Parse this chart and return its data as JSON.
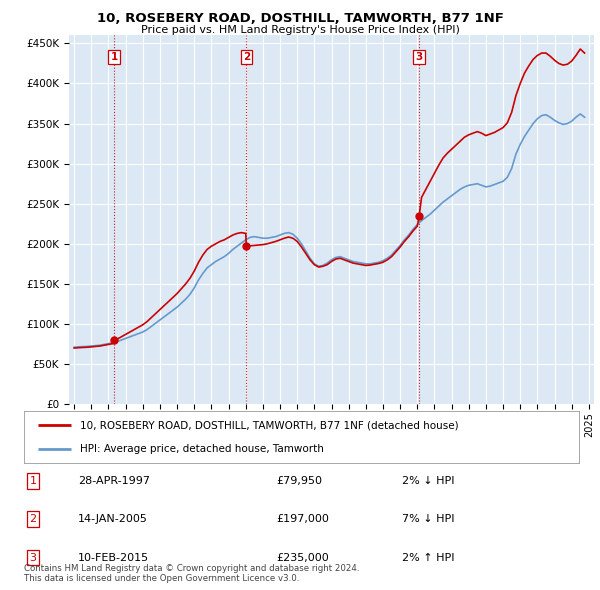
{
  "title": "10, ROSEBERY ROAD, DOSTHILL, TAMWORTH, B77 1NF",
  "subtitle": "Price paid vs. HM Land Registry's House Price Index (HPI)",
  "legend_line1": "10, ROSEBERY ROAD, DOSTHILL, TAMWORTH, B77 1NF (detached house)",
  "legend_line2": "HPI: Average price, detached house, Tamworth",
  "sale_color": "#cc0000",
  "hpi_color": "#6699cc",
  "background_chart": "#dce9f5",
  "background_fig": "#ffffff",
  "grid_color": "#ffffff",
  "vline_color": "#cc0000",
  "transactions": [
    {
      "label": "1",
      "date_num": 1997.32,
      "price": 79950,
      "info": "28-APR-1997",
      "amount": "£79,950",
      "pct": "2%",
      "dir": "↓"
    },
    {
      "label": "2",
      "date_num": 2005.04,
      "price": 197000,
      "info": "14-JAN-2005",
      "amount": "£197,000",
      "pct": "7%",
      "dir": "↓"
    },
    {
      "label": "3",
      "date_num": 2015.11,
      "price": 235000,
      "info": "10-FEB-2015",
      "amount": "£235,000",
      "pct": "2%",
      "dir": "↑"
    }
  ],
  "hpi_data": [
    [
      1995.0,
      71000
    ],
    [
      1995.25,
      71500
    ],
    [
      1995.5,
      71800
    ],
    [
      1995.75,
      72000
    ],
    [
      1996.0,
      72500
    ],
    [
      1996.25,
      73000
    ],
    [
      1996.5,
      73500
    ],
    [
      1996.75,
      74500
    ],
    [
      1997.0,
      75500
    ],
    [
      1997.25,
      76500
    ],
    [
      1997.5,
      78000
    ],
    [
      1997.75,
      80000
    ],
    [
      1998.0,
      82000
    ],
    [
      1998.25,
      84000
    ],
    [
      1998.5,
      86000
    ],
    [
      1998.75,
      88000
    ],
    [
      1999.0,
      90000
    ],
    [
      1999.25,
      93000
    ],
    [
      1999.5,
      97000
    ],
    [
      1999.75,
      101000
    ],
    [
      2000.0,
      105000
    ],
    [
      2000.25,
      109000
    ],
    [
      2000.5,
      113000
    ],
    [
      2000.75,
      117000
    ],
    [
      2001.0,
      121000
    ],
    [
      2001.25,
      126000
    ],
    [
      2001.5,
      131000
    ],
    [
      2001.75,
      137000
    ],
    [
      2002.0,
      145000
    ],
    [
      2002.25,
      155000
    ],
    [
      2002.5,
      163000
    ],
    [
      2002.75,
      170000
    ],
    [
      2003.0,
      174000
    ],
    [
      2003.25,
      178000
    ],
    [
      2003.5,
      181000
    ],
    [
      2003.75,
      184000
    ],
    [
      2004.0,
      188000
    ],
    [
      2004.25,
      193000
    ],
    [
      2004.5,
      197000
    ],
    [
      2004.75,
      201000
    ],
    [
      2005.0,
      205000
    ],
    [
      2005.25,
      208000
    ],
    [
      2005.5,
      209000
    ],
    [
      2005.75,
      208000
    ],
    [
      2006.0,
      207000
    ],
    [
      2006.25,
      207000
    ],
    [
      2006.5,
      208000
    ],
    [
      2006.75,
      209000
    ],
    [
      2007.0,
      211000
    ],
    [
      2007.25,
      213000
    ],
    [
      2007.5,
      214000
    ],
    [
      2007.75,
      212000
    ],
    [
      2008.0,
      207000
    ],
    [
      2008.25,
      200000
    ],
    [
      2008.5,
      191000
    ],
    [
      2008.75,
      182000
    ],
    [
      2009.0,
      175000
    ],
    [
      2009.25,
      172000
    ],
    [
      2009.5,
      173000
    ],
    [
      2009.75,
      176000
    ],
    [
      2010.0,
      180000
    ],
    [
      2010.25,
      183000
    ],
    [
      2010.5,
      184000
    ],
    [
      2010.75,
      182000
    ],
    [
      2011.0,
      180000
    ],
    [
      2011.25,
      178000
    ],
    [
      2011.5,
      177000
    ],
    [
      2011.75,
      176000
    ],
    [
      2012.0,
      175000
    ],
    [
      2012.25,
      175000
    ],
    [
      2012.5,
      176000
    ],
    [
      2012.75,
      177000
    ],
    [
      2013.0,
      179000
    ],
    [
      2013.25,
      182000
    ],
    [
      2013.5,
      186000
    ],
    [
      2013.75,
      192000
    ],
    [
      2014.0,
      198000
    ],
    [
      2014.25,
      205000
    ],
    [
      2014.5,
      211000
    ],
    [
      2014.75,
      218000
    ],
    [
      2015.0,
      224000
    ],
    [
      2015.25,
      229000
    ],
    [
      2015.5,
      233000
    ],
    [
      2015.75,
      237000
    ],
    [
      2016.0,
      242000
    ],
    [
      2016.25,
      247000
    ],
    [
      2016.5,
      252000
    ],
    [
      2016.75,
      256000
    ],
    [
      2017.0,
      260000
    ],
    [
      2017.25,
      264000
    ],
    [
      2017.5,
      268000
    ],
    [
      2017.75,
      271000
    ],
    [
      2018.0,
      273000
    ],
    [
      2018.25,
      274000
    ],
    [
      2018.5,
      275000
    ],
    [
      2018.75,
      273000
    ],
    [
      2019.0,
      271000
    ],
    [
      2019.25,
      272000
    ],
    [
      2019.5,
      274000
    ],
    [
      2019.75,
      276000
    ],
    [
      2020.0,
      278000
    ],
    [
      2020.25,
      283000
    ],
    [
      2020.5,
      294000
    ],
    [
      2020.75,
      312000
    ],
    [
      2021.0,
      324000
    ],
    [
      2021.25,
      334000
    ],
    [
      2021.5,
      342000
    ],
    [
      2021.75,
      350000
    ],
    [
      2022.0,
      356000
    ],
    [
      2022.25,
      360000
    ],
    [
      2022.5,
      361000
    ],
    [
      2022.75,
      358000
    ],
    [
      2023.0,
      354000
    ],
    [
      2023.25,
      351000
    ],
    [
      2023.5,
      349000
    ],
    [
      2023.75,
      350000
    ],
    [
      2024.0,
      353000
    ],
    [
      2024.25,
      358000
    ],
    [
      2024.5,
      362000
    ],
    [
      2024.75,
      358000
    ]
  ],
  "sale_hpi_data": [
    [
      1995.0,
      70000
    ],
    [
      1995.25,
      70400
    ],
    [
      1995.5,
      70700
    ],
    [
      1995.75,
      71000
    ],
    [
      1996.0,
      71400
    ],
    [
      1996.25,
      72000
    ],
    [
      1996.5,
      72500
    ],
    [
      1996.75,
      73500
    ],
    [
      1997.0,
      74500
    ],
    [
      1997.25,
      75500
    ],
    [
      1997.32,
      79950
    ],
    [
      1997.5,
      81000
    ],
    [
      1997.75,
      84000
    ],
    [
      1998.0,
      87000
    ],
    [
      1998.25,
      90000
    ],
    [
      1998.5,
      93000
    ],
    [
      1998.75,
      96000
    ],
    [
      1999.0,
      99000
    ],
    [
      1999.25,
      103000
    ],
    [
      1999.5,
      108000
    ],
    [
      1999.75,
      113000
    ],
    [
      2000.0,
      118000
    ],
    [
      2000.25,
      123000
    ],
    [
      2000.5,
      128000
    ],
    [
      2000.75,
      133000
    ],
    [
      2001.0,
      138000
    ],
    [
      2001.25,
      144000
    ],
    [
      2001.5,
      150000
    ],
    [
      2001.75,
      157000
    ],
    [
      2002.0,
      166000
    ],
    [
      2002.25,
      177000
    ],
    [
      2002.5,
      186000
    ],
    [
      2002.75,
      193000
    ],
    [
      2003.0,
      197000
    ],
    [
      2003.25,
      200000
    ],
    [
      2003.5,
      203000
    ],
    [
      2003.75,
      205000
    ],
    [
      2004.0,
      208000
    ],
    [
      2004.25,
      211000
    ],
    [
      2004.5,
      213000
    ],
    [
      2004.75,
      214000
    ],
    [
      2005.0,
      213000
    ],
    [
      2005.04,
      197000
    ],
    [
      2005.25,
      197500
    ],
    [
      2005.5,
      198000
    ],
    [
      2005.75,
      198500
    ],
    [
      2006.0,
      199000
    ],
    [
      2006.25,
      200000
    ],
    [
      2006.5,
      201500
    ],
    [
      2006.75,
      203000
    ],
    [
      2007.0,
      205000
    ],
    [
      2007.25,
      207000
    ],
    [
      2007.5,
      208500
    ],
    [
      2007.75,
      207000
    ],
    [
      2008.0,
      203000
    ],
    [
      2008.25,
      196000
    ],
    [
      2008.5,
      188000
    ],
    [
      2008.75,
      180000
    ],
    [
      2009.0,
      174000
    ],
    [
      2009.25,
      171000
    ],
    [
      2009.5,
      172000
    ],
    [
      2009.75,
      174000
    ],
    [
      2010.0,
      178000
    ],
    [
      2010.25,
      181000
    ],
    [
      2010.5,
      182000
    ],
    [
      2010.75,
      180000
    ],
    [
      2011.0,
      178000
    ],
    [
      2011.25,
      176000
    ],
    [
      2011.5,
      175000
    ],
    [
      2011.75,
      174000
    ],
    [
      2012.0,
      173000
    ],
    [
      2012.25,
      173500
    ],
    [
      2012.5,
      174500
    ],
    [
      2012.75,
      175500
    ],
    [
      2013.0,
      177000
    ],
    [
      2013.25,
      180000
    ],
    [
      2013.5,
      184000
    ],
    [
      2013.75,
      190000
    ],
    [
      2014.0,
      196000
    ],
    [
      2014.25,
      203000
    ],
    [
      2014.5,
      209000
    ],
    [
      2014.75,
      216000
    ],
    [
      2015.0,
      222000
    ],
    [
      2015.11,
      235000
    ],
    [
      2015.25,
      258000
    ],
    [
      2015.5,
      268000
    ],
    [
      2015.75,
      278000
    ],
    [
      2016.0,
      288000
    ],
    [
      2016.25,
      298000
    ],
    [
      2016.5,
      307000
    ],
    [
      2016.75,
      313000
    ],
    [
      2017.0,
      318000
    ],
    [
      2017.25,
      323000
    ],
    [
      2017.5,
      328000
    ],
    [
      2017.75,
      333000
    ],
    [
      2018.0,
      336000
    ],
    [
      2018.25,
      338000
    ],
    [
      2018.5,
      340000
    ],
    [
      2018.75,
      338000
    ],
    [
      2019.0,
      335000
    ],
    [
      2019.25,
      337000
    ],
    [
      2019.5,
      339000
    ],
    [
      2019.75,
      342000
    ],
    [
      2020.0,
      345000
    ],
    [
      2020.25,
      351000
    ],
    [
      2020.5,
      364000
    ],
    [
      2020.75,
      385000
    ],
    [
      2021.0,
      400000
    ],
    [
      2021.25,
      413000
    ],
    [
      2021.5,
      422000
    ],
    [
      2021.75,
      430000
    ],
    [
      2022.0,
      435000
    ],
    [
      2022.25,
      438000
    ],
    [
      2022.5,
      438000
    ],
    [
      2022.75,
      434000
    ],
    [
      2023.0,
      429000
    ],
    [
      2023.25,
      425000
    ],
    [
      2023.5,
      423000
    ],
    [
      2023.75,
      424000
    ],
    [
      2024.0,
      428000
    ],
    [
      2024.25,
      435000
    ],
    [
      2024.5,
      443000
    ],
    [
      2024.75,
      438000
    ]
  ],
  "xlim": [
    1994.7,
    2025.3
  ],
  "ylim": [
    0,
    460000
  ],
  "yticks": [
    0,
    50000,
    100000,
    150000,
    200000,
    250000,
    300000,
    350000,
    400000,
    450000
  ],
  "xticks": [
    1995,
    1996,
    1997,
    1998,
    1999,
    2000,
    2001,
    2002,
    2003,
    2004,
    2005,
    2006,
    2007,
    2008,
    2009,
    2010,
    2011,
    2012,
    2013,
    2014,
    2015,
    2016,
    2017,
    2018,
    2019,
    2020,
    2021,
    2022,
    2023,
    2024,
    2025
  ],
  "footnote": "Contains HM Land Registry data © Crown copyright and database right 2024.\nThis data is licensed under the Open Government Licence v3.0."
}
